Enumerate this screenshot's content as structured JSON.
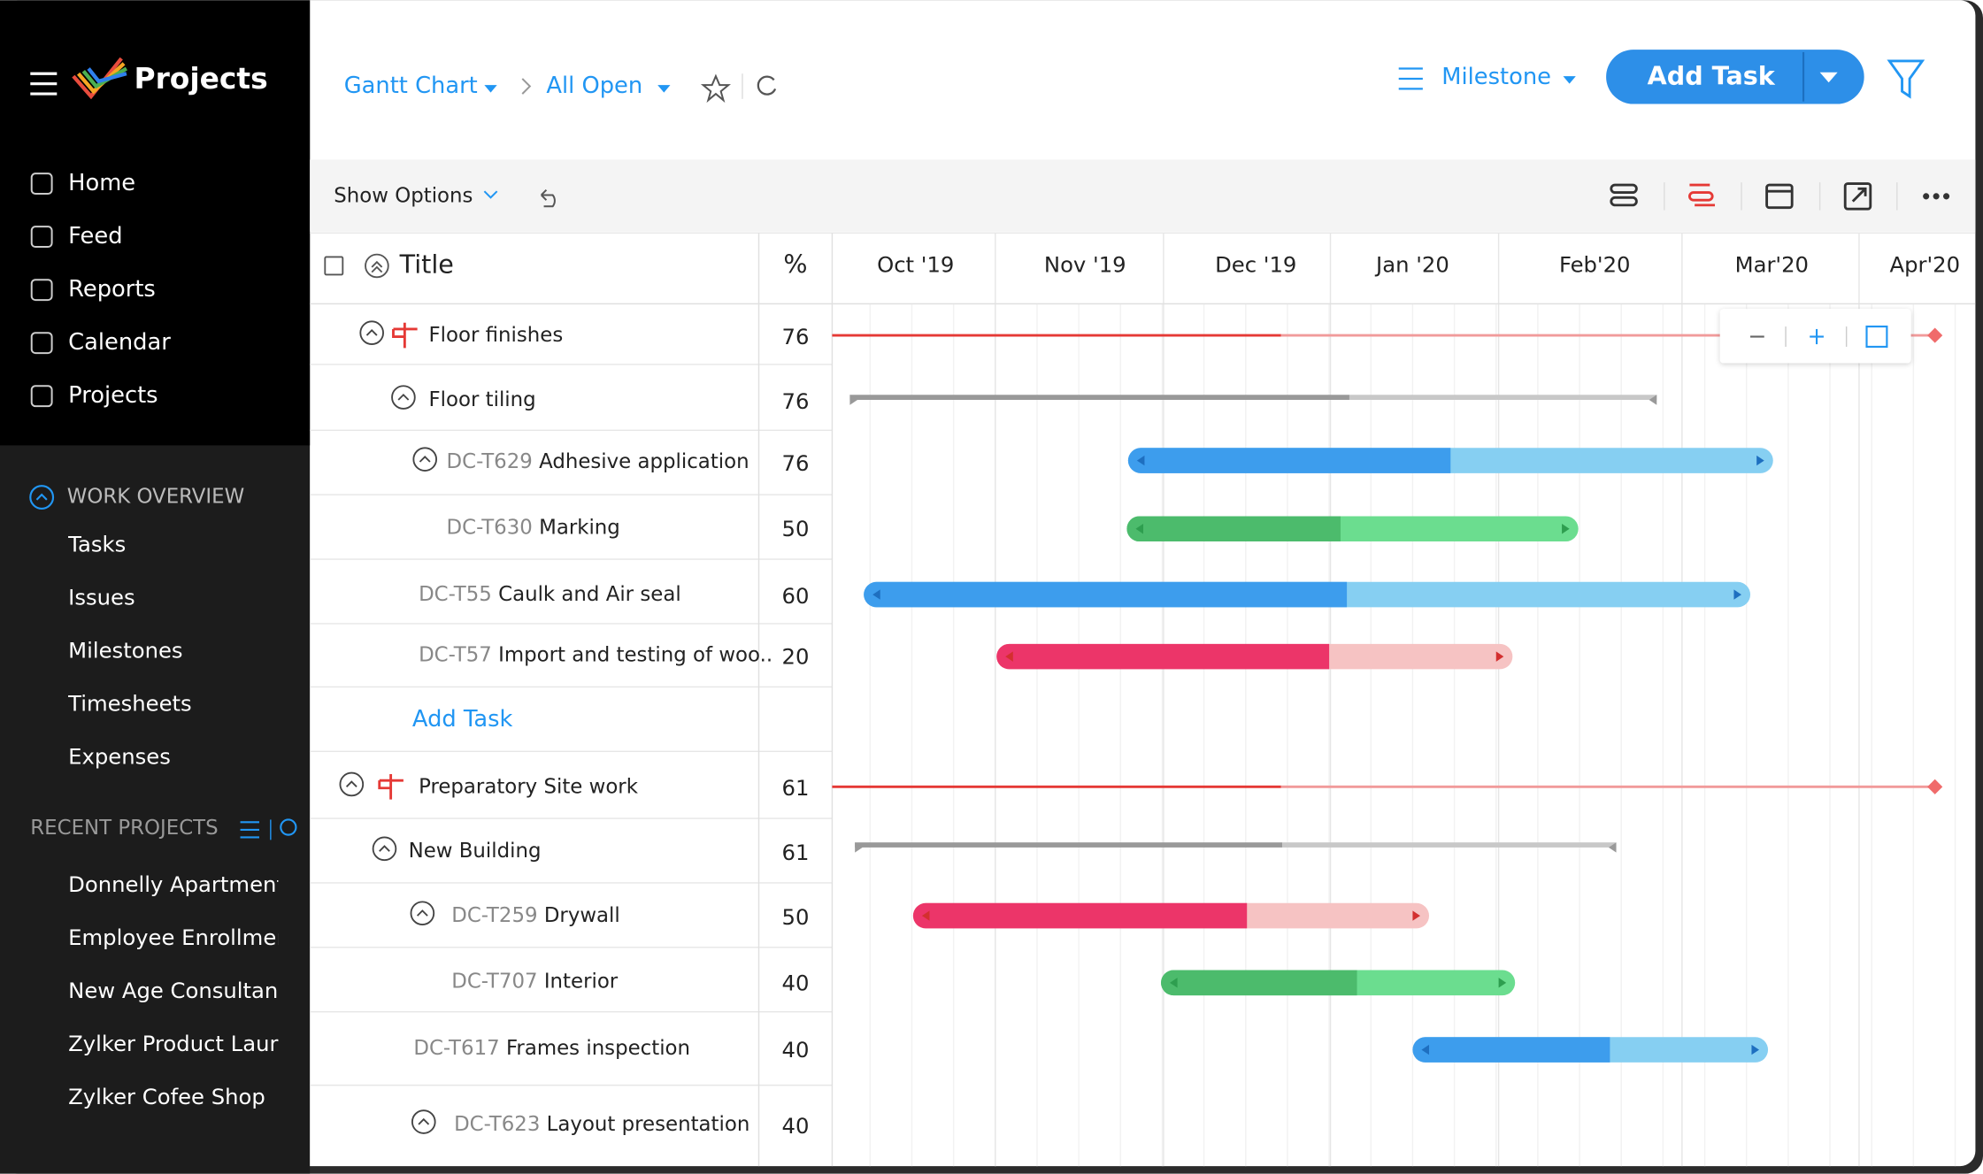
{
  "sidebar": {
    "app_name": "Projects",
    "nav": [
      "Home",
      "Feed",
      "Reports",
      "Calendar",
      "Projects"
    ],
    "work_overview": {
      "title": "WORK OVERVIEW",
      "items": [
        "Tasks",
        "Issues",
        "Milestones",
        "Timesheets",
        "Expenses"
      ]
    },
    "recent_projects": {
      "title": "RECENT PROJECTS",
      "items": [
        "Donnelly Apartments",
        "Employee Enrollment",
        "New Age Consultancy",
        "Zylker Product Launch",
        "Zylker Cofee Shop"
      ]
    }
  },
  "header": {
    "view": "Gantt Chart",
    "filter": "All Open",
    "milestone": "Milestone",
    "add_task": "Add Task"
  },
  "toolbar": {
    "show_options": "Show Options"
  },
  "table": {
    "columns": [
      "Title",
      "%"
    ],
    "rows": [
      {
        "name": "Floor finishes",
        "percent": 76
      },
      {
        "name": "Floor tiling",
        "percent": 76
      },
      {
        "id": "DC-T629",
        "name": "Adhesive application",
        "percent": 76
      },
      {
        "id": "DC-T630",
        "name": "Marking",
        "percent": 50
      },
      {
        "id": "DC-T55",
        "name": "Caulk and Air seal",
        "percent": 60
      },
      {
        "id": "DC-T57",
        "name": "Import and testing of woo..",
        "percent": 20
      },
      {
        "add_task": "Add Task"
      },
      {
        "name": "Preparatory Site work",
        "percent": 61
      },
      {
        "name": "New Building",
        "percent": 61
      },
      {
        "id": "DC-T259",
        "name": "Drywall",
        "percent": 50
      },
      {
        "id": "DC-T707",
        "name": "Interior",
        "percent": 40
      },
      {
        "id": "DC-T617",
        "name": "Frames inspection",
        "percent": 40
      },
      {
        "id": "DC-T623",
        "name": "Layout presentation",
        "percent": 40
      }
    ]
  },
  "timeline": {
    "months": [
      "Oct '19",
      "Nov '19",
      "Dec '19",
      "Jan '20",
      "Feb'20",
      "Mar'20",
      "Apr'20"
    ]
  }
}
